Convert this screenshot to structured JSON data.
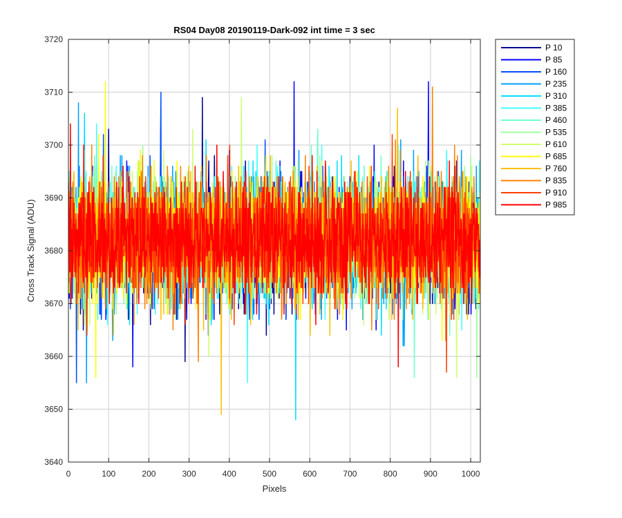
{
  "chart_data": {
    "type": "line",
    "title": "RS04 Day08 20190119-Dark-092 int time = 3 sec",
    "xlabel": "Pixels",
    "ylabel": "Cross Track Signal (ADU)",
    "xlim": [
      0,
      1024
    ],
    "ylim": [
      3640,
      3720
    ],
    "xticks": [
      0,
      100,
      200,
      300,
      400,
      500,
      600,
      700,
      800,
      900,
      1000
    ],
    "yticks": [
      3640,
      3650,
      3660,
      3670,
      3680,
      3690,
      3700,
      3710,
      3720
    ],
    "grid": true,
    "legend_position": "outside-top-right",
    "noise": {
      "center": 3682,
      "typical_range": [
        3663,
        3702
      ],
      "points_per_series": 1024
    },
    "series": [
      {
        "name": "P 10",
        "color": "#00008f",
        "peaks": [
          {
            "x": 333,
            "y": 3709
          }
        ],
        "troughs": [
          {
            "x": 290,
            "y": 3659
          }
        ]
      },
      {
        "name": "P 85",
        "color": "#0000ff",
        "peaks": [
          {
            "x": 561,
            "y": 3712
          },
          {
            "x": 895,
            "y": 3712
          }
        ],
        "troughs": [
          {
            "x": 160,
            "y": 3658
          }
        ]
      },
      {
        "name": "P 160",
        "color": "#0050ff",
        "peaks": [
          {
            "x": 230,
            "y": 3710
          }
        ],
        "troughs": [
          {
            "x": 20,
            "y": 3655
          }
        ]
      },
      {
        "name": "P 235",
        "color": "#009fff",
        "peaks": [
          {
            "x": 25,
            "y": 3708
          }
        ],
        "troughs": [
          {
            "x": 45,
            "y": 3655
          }
        ]
      },
      {
        "name": "P 310",
        "color": "#00dfff",
        "peaks": [
          {
            "x": 40,
            "y": 3706
          }
        ],
        "troughs": [
          {
            "x": 565,
            "y": 3648
          }
        ]
      },
      {
        "name": "P 385",
        "color": "#40ffff",
        "peaks": [
          {
            "x": 70,
            "y": 3704
          }
        ],
        "troughs": [
          {
            "x": 445,
            "y": 3655
          }
        ]
      },
      {
        "name": "P 460",
        "color": "#6fffcf",
        "peaks": [
          {
            "x": 620,
            "y": 3703
          }
        ],
        "troughs": [
          {
            "x": 860,
            "y": 3656
          }
        ]
      },
      {
        "name": "P 535",
        "color": "#9fff9f",
        "peaks": [
          {
            "x": 430,
            "y": 3709
          }
        ],
        "troughs": [
          {
            "x": 1015,
            "y": 3656
          }
        ]
      },
      {
        "name": "P 610",
        "color": "#cfff6f",
        "peaks": [
          {
            "x": 430,
            "y": 3709
          }
        ],
        "troughs": [
          {
            "x": 965,
            "y": 3656
          }
        ]
      },
      {
        "name": "P 685",
        "color": "#ffff00",
        "peaks": [
          {
            "x": 92,
            "y": 3712
          }
        ],
        "troughs": [
          {
            "x": 68,
            "y": 3656
          }
        ]
      },
      {
        "name": "P 760",
        "color": "#ffbf00",
        "peaks": [
          {
            "x": 818,
            "y": 3707
          }
        ],
        "troughs": [
          {
            "x": 380,
            "y": 3649
          }
        ]
      },
      {
        "name": "P 835",
        "color": "#ff8000",
        "peaks": [
          {
            "x": 905,
            "y": 3711
          }
        ],
        "troughs": [
          {
            "x": 323,
            "y": 3659
          }
        ]
      },
      {
        "name": "P 910",
        "color": "#ff4000",
        "peaks": [
          {
            "x": 805,
            "y": 3702
          }
        ],
        "troughs": [
          {
            "x": 940,
            "y": 3657
          }
        ]
      },
      {
        "name": "P 985",
        "color": "#ff0000",
        "peaks": [
          {
            "x": 5,
            "y": 3704
          }
        ],
        "troughs": [
          {
            "x": 820,
            "y": 3658
          }
        ]
      }
    ]
  }
}
